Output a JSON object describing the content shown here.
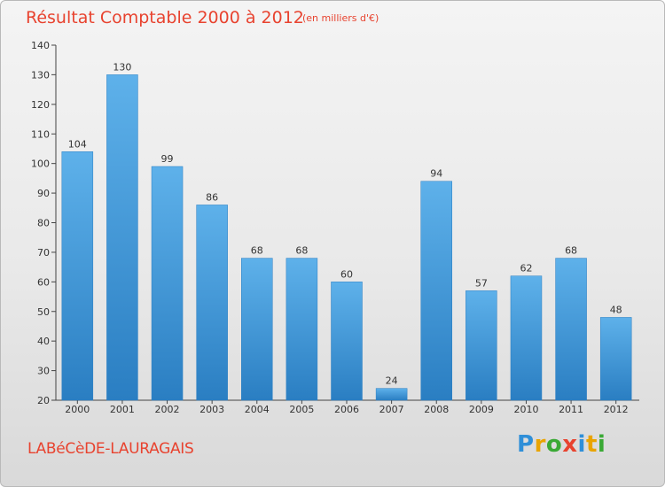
{
  "title": "Résultat Comptable 2000 à 2012",
  "subtitle": "(en milliers d'€)",
  "place": "LABéCèDE-LAURAGAIS",
  "logo": {
    "letters": [
      "P",
      "r",
      "o",
      "x",
      "i",
      "t",
      "i"
    ],
    "colors": [
      "#2f8fd8",
      "#e9a400",
      "#3aa935",
      "#e8432f",
      "#2f8fd8",
      "#e9a400",
      "#3aa935"
    ]
  },
  "colors": {
    "bar_top": "#5eb1ea",
    "bar_bottom": "#2a7ec2",
    "title": "#e8432f"
  },
  "chart_data": {
    "type": "bar",
    "title": "Résultat Comptable 2000 à 2012",
    "subtitle": "(en milliers d'€)",
    "categories": [
      "2000",
      "2001",
      "2002",
      "2003",
      "2004",
      "2005",
      "2006",
      "2007",
      "2008",
      "2009",
      "2010",
      "2011",
      "2012"
    ],
    "values": [
      104,
      130,
      99,
      86,
      68,
      68,
      60,
      24,
      94,
      57,
      62,
      68,
      48
    ],
    "ylim": [
      20,
      140
    ],
    "yticks": [
      20,
      30,
      40,
      50,
      60,
      70,
      80,
      90,
      100,
      110,
      120,
      130,
      140
    ],
    "grid": false,
    "data_labels": true
  }
}
